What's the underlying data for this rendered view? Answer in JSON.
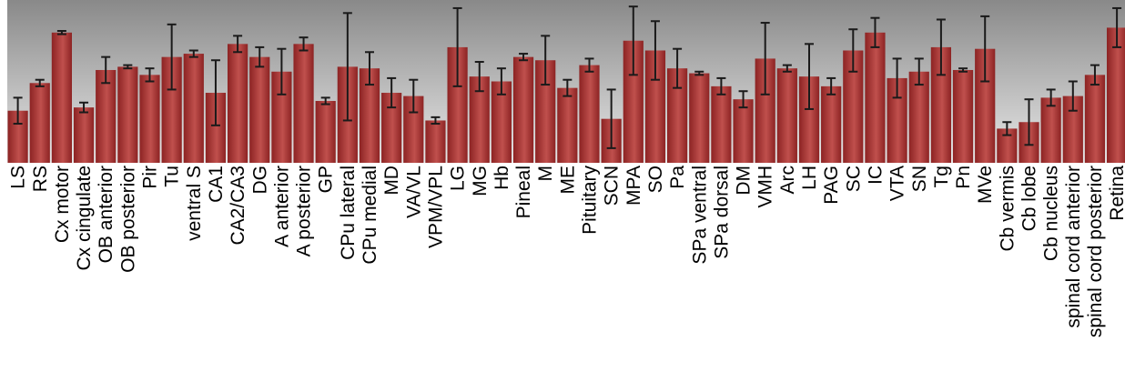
{
  "chart_data": {
    "type": "bar",
    "title": "",
    "xlabel": "",
    "ylabel": "",
    "ylim": [
      0,
      100
    ],
    "grid": false,
    "legend": "none",
    "colors": {
      "bar_light": "#c0504d",
      "bar_dark": "#8c2323",
      "background_top": "#898989",
      "background_bottom": "#e8e8e8",
      "error_bar": "#1a1a1a"
    },
    "categories": [
      "LS",
      "RS",
      "Cx motor",
      "Cx cingulate",
      "OB anterior",
      "OB posterior",
      "Pir",
      "Tu",
      "ventral S",
      "CA1",
      "CA2/CA3",
      "DG",
      "A anterior",
      "A posterior",
      "GP",
      "CPu lateral",
      "CPu medial",
      "MD",
      "VA/VL",
      "VPM/VPL",
      "LG",
      "MG",
      "Hb",
      "Pineal",
      "M",
      "ME",
      "Pituitary",
      "SCN",
      "MPA",
      "SO",
      "Pa",
      "SPa ventral",
      "SPa dorsal",
      "DM",
      "VMH",
      "Arc",
      "LH",
      "PAG",
      "SC",
      "IC",
      "VTA",
      "SN",
      "Tg",
      "Pn",
      "MVe",
      "Cb vermis",
      "Cb lobe",
      "Cb nucleus",
      "spinal cord anterior",
      "spinal cord posterior",
      "Retina"
    ],
    "series": [
      {
        "values": [
          32,
          49,
          80,
          34,
          57,
          59,
          54,
          65,
          67,
          43,
          73,
          65,
          56,
          73,
          38,
          59,
          58,
          43,
          41,
          26,
          71,
          53,
          50,
          65,
          63,
          46,
          60,
          27,
          75,
          69,
          58,
          55,
          47,
          39,
          64,
          58,
          53,
          47,
          69,
          80,
          52,
          56,
          71,
          57,
          70,
          21,
          25,
          40,
          41,
          54,
          83
        ],
        "errors": [
          8,
          2,
          1,
          3,
          8,
          1,
          4,
          20,
          2,
          20,
          5,
          6,
          14,
          4,
          2,
          33,
          10,
          9,
          10,
          2,
          24,
          9,
          8,
          2,
          15,
          5,
          4,
          18,
          21,
          18,
          12,
          1,
          5,
          5,
          22,
          2,
          20,
          5,
          13,
          9,
          12,
          8,
          17,
          1,
          20,
          4,
          14,
          5,
          9,
          6,
          12
        ]
      }
    ]
  }
}
